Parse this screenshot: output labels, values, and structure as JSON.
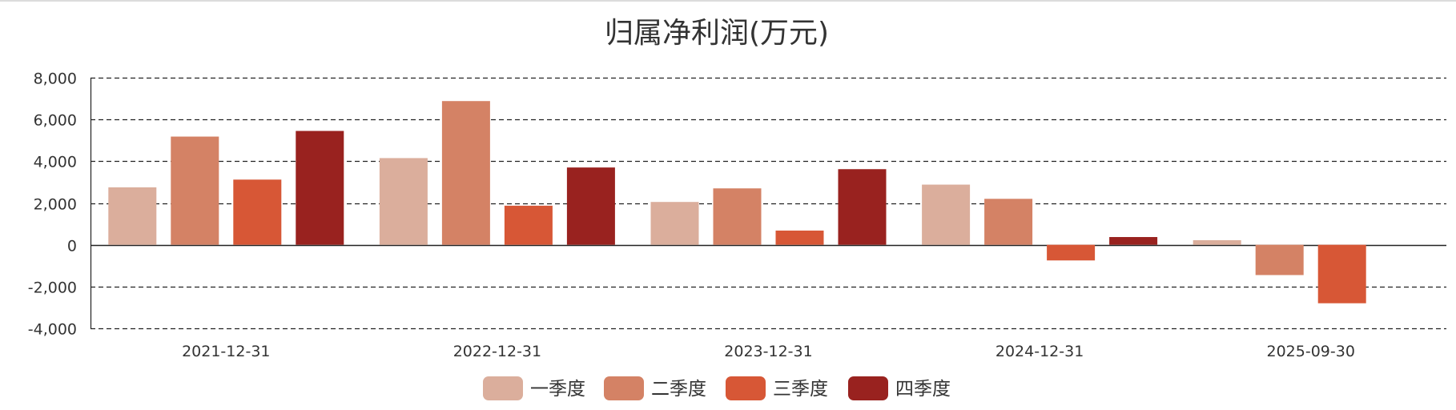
{
  "chart_data": {
    "type": "bar",
    "title": "归属净利润(万元)",
    "xlabel": "",
    "ylabel": "",
    "ylim": [
      -4000,
      8000
    ],
    "yticks": [
      -4000,
      -2000,
      0,
      2000,
      4000,
      6000,
      8000
    ],
    "ytick_labels": [
      "-4,000",
      "-2,000",
      "0",
      "2,000",
      "4,000",
      "6,000",
      "8,000"
    ],
    "grid": "dashed horizontal",
    "legend_position": "bottom-center",
    "categories": [
      "2021-12-31",
      "2022-12-31",
      "2023-12-31",
      "2024-12-31",
      "2025-09-30"
    ],
    "series": [
      {
        "name": "一季度",
        "color": "#dbae9c",
        "values": [
          2750,
          4150,
          2050,
          2880,
          220
        ]
      },
      {
        "name": "二季度",
        "color": "#d48265",
        "values": [
          5180,
          6880,
          2700,
          2200,
          -1450
        ]
      },
      {
        "name": "三季度",
        "color": "#d75736",
        "values": [
          3120,
          1870,
          680,
          -750,
          -2800
        ]
      },
      {
        "name": "四季度",
        "color": "#99221f",
        "values": [
          5450,
          3700,
          3620,
          370,
          null
        ]
      }
    ]
  }
}
